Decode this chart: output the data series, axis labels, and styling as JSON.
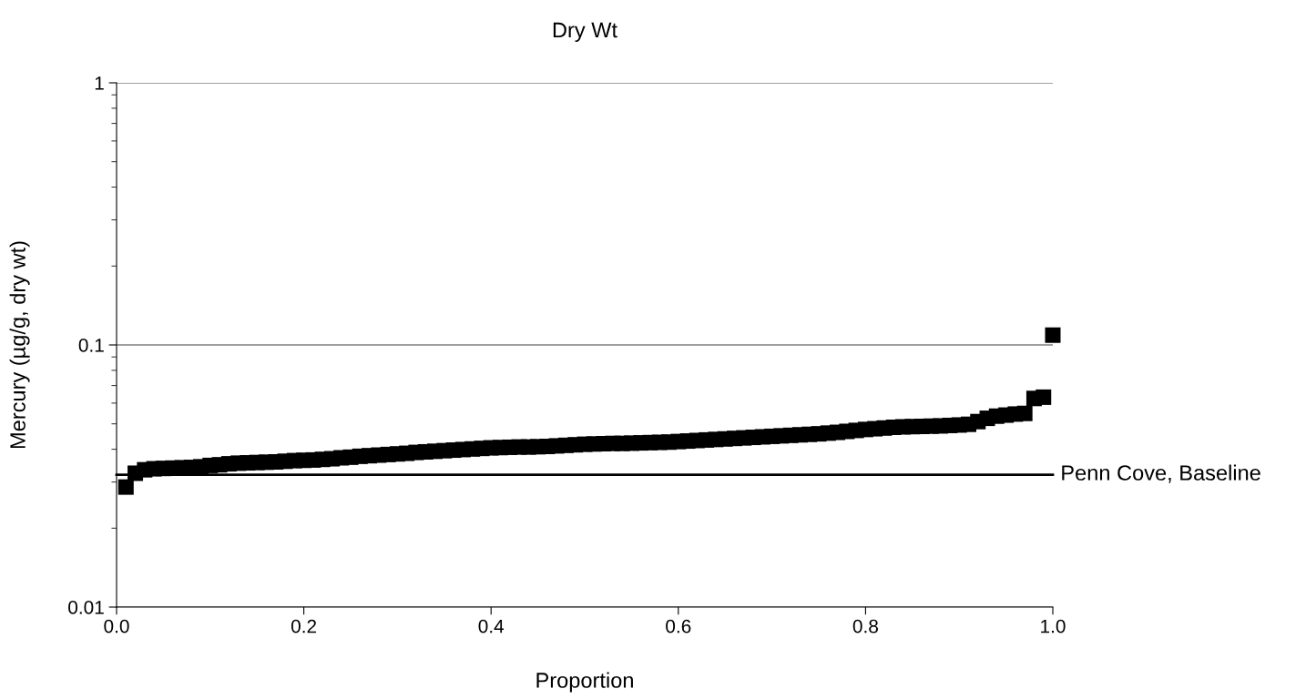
{
  "chart_data": {
    "type": "scatter",
    "title": "Dry Wt",
    "xlabel": "Proportion",
    "ylabel": "Mercury (µg/g, dry wt)",
    "x": [
      0.01,
      0.02,
      0.03,
      0.04,
      0.05,
      0.06,
      0.07,
      0.08,
      0.09,
      0.1,
      0.11,
      0.12,
      0.13,
      0.14,
      0.15,
      0.16,
      0.17,
      0.18,
      0.19,
      0.2,
      0.21,
      0.22,
      0.23,
      0.24,
      0.25,
      0.26,
      0.27,
      0.28,
      0.29,
      0.3,
      0.31,
      0.32,
      0.33,
      0.34,
      0.35,
      0.36,
      0.37,
      0.38,
      0.39,
      0.4,
      0.41,
      0.42,
      0.43,
      0.44,
      0.45,
      0.46,
      0.47,
      0.48,
      0.49,
      0.5,
      0.51,
      0.52,
      0.53,
      0.54,
      0.55,
      0.56,
      0.57,
      0.58,
      0.59,
      0.6,
      0.61,
      0.62,
      0.63,
      0.64,
      0.65,
      0.66,
      0.67,
      0.68,
      0.69,
      0.7,
      0.71,
      0.72,
      0.73,
      0.74,
      0.75,
      0.76,
      0.77,
      0.78,
      0.79,
      0.8,
      0.81,
      0.82,
      0.83,
      0.84,
      0.85,
      0.86,
      0.87,
      0.88,
      0.89,
      0.9,
      0.91,
      0.92,
      0.93,
      0.94,
      0.95,
      0.96,
      0.97,
      0.98,
      0.99,
      1.0
    ],
    "series": [
      {
        "color": "#000000",
        "values": [
          0.0287,
          0.0324,
          0.0334,
          0.0337,
          0.0338,
          0.0339,
          0.034,
          0.0341,
          0.0343,
          0.0347,
          0.0349,
          0.0352,
          0.0354,
          0.0355,
          0.0356,
          0.0357,
          0.0358,
          0.036,
          0.0362,
          0.0363,
          0.0364,
          0.0366,
          0.0368,
          0.0371,
          0.0373,
          0.0376,
          0.0378,
          0.038,
          0.0382,
          0.0384,
          0.0386,
          0.0389,
          0.0391,
          0.0393,
          0.0395,
          0.0397,
          0.0399,
          0.0401,
          0.0403,
          0.0405,
          0.0406,
          0.0407,
          0.0408,
          0.0408,
          0.0409,
          0.041,
          0.0412,
          0.0414,
          0.0416,
          0.0418,
          0.0419,
          0.042,
          0.0421,
          0.0421,
          0.0422,
          0.0423,
          0.0424,
          0.0425,
          0.0426,
          0.0428,
          0.043,
          0.0432,
          0.0434,
          0.0436,
          0.0438,
          0.044,
          0.0442,
          0.0444,
          0.0446,
          0.0448,
          0.045,
          0.0452,
          0.0454,
          0.0456,
          0.0458,
          0.0461,
          0.0464,
          0.0468,
          0.0472,
          0.0476,
          0.0479,
          0.0482,
          0.0485,
          0.0487,
          0.0488,
          0.0489,
          0.049,
          0.0491,
          0.0493,
          0.0495,
          0.0498,
          0.051,
          0.0525,
          0.0535,
          0.054,
          0.0545,
          0.0548,
          0.0625,
          0.0632,
          0.109
        ]
      }
    ],
    "xlim": [
      0,
      1
    ],
    "ylim": [
      0.01,
      1
    ],
    "log": "y",
    "xticks": [
      {
        "value": 0,
        "label": "0.0"
      },
      {
        "value": 0.2,
        "label": "0.2"
      },
      {
        "value": 0.4,
        "label": "0.4"
      },
      {
        "value": 0.6,
        "label": "0.6"
      },
      {
        "value": 0.8,
        "label": "0.8"
      },
      {
        "value": 1,
        "label": "1.0"
      }
    ],
    "yticks": [
      0.01,
      0.1,
      1
    ],
    "grid": "y",
    "marker": "square",
    "ref_lines": [
      {
        "axis": "y",
        "value": 0.032,
        "label": "Penn Cove, Baseline",
        "color": "#000000",
        "line_style": "solid"
      }
    ]
  }
}
